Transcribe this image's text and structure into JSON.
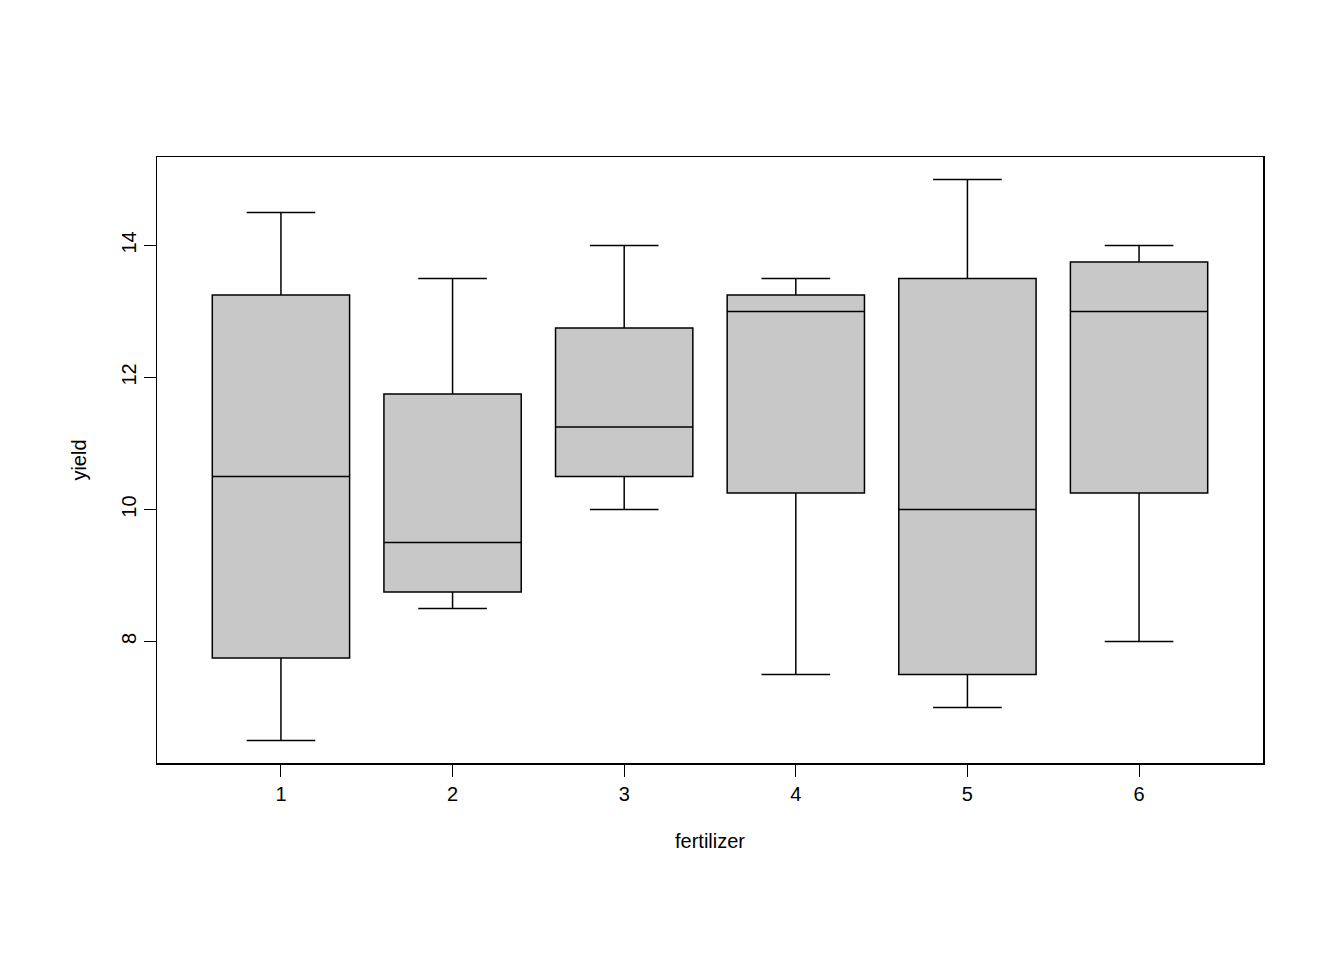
{
  "chart_data": {
    "type": "box",
    "xlabel": "fertilizer",
    "ylabel": "yield",
    "categories": [
      "1",
      "2",
      "3",
      "4",
      "5",
      "6"
    ],
    "min": [
      6.5,
      8.5,
      10,
      7.5,
      7,
      8
    ],
    "q1": [
      7.75,
      8.75,
      10.5,
      10.25,
      7.5,
      10.25
    ],
    "median": [
      10.5,
      9.5,
      11.25,
      13,
      10,
      13
    ],
    "q3": [
      13.25,
      11.75,
      12.75,
      13.25,
      13.5,
      13.75
    ],
    "max": [
      14.5,
      13.5,
      14,
      13.5,
      15,
      14
    ],
    "color": "#c8c8c8",
    "ylim": [
      6.16,
      15.34
    ],
    "yticks": [
      8,
      10,
      12,
      14
    ],
    "grid": false
  }
}
